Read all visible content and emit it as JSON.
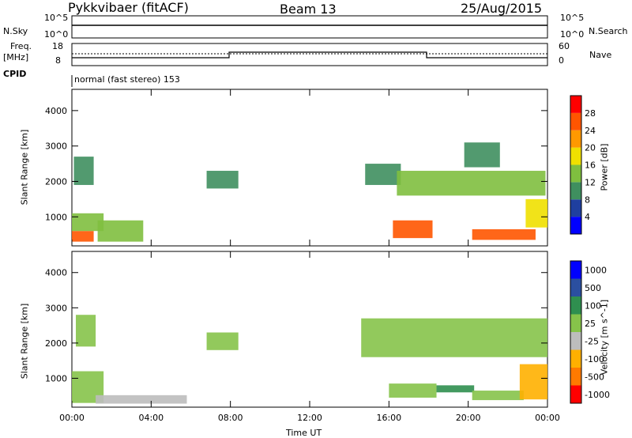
{
  "header": {
    "station": "Pykkvibaer (fitACF)",
    "beam": "Beam 13",
    "date": "25/Aug/2015"
  },
  "param_panels": {
    "nsky": {
      "label": "N.Sky",
      "ticks": [
        "10^5",
        "10^0"
      ]
    },
    "nsearch": {
      "label": "N.Search",
      "ticks": [
        "10^5",
        "10^0"
      ]
    },
    "freq": {
      "label_line1": "Freq.",
      "label_line2": "[MHz]",
      "ticks": [
        "18",
        "8"
      ]
    },
    "nave": {
      "label": "Nave",
      "ticks": [
        "60",
        "0"
      ]
    },
    "cpid": {
      "label": "CPID",
      "text": "normal (fast stereo) 153"
    }
  },
  "colors": {
    "power_scale": [
      "#0000ff",
      "#1f3f9f",
      "#3f8f5f",
      "#7fbf3f",
      "#f0e000",
      "#ff9900",
      "#ff5500",
      "#ff0000"
    ],
    "velocity_scale": [
      "#ff0000",
      "#ff7a00",
      "#ffb000",
      "#bdbdbd",
      "#86c34a",
      "#2f8f4f",
      "#2b4fa0",
      "#0000ff"
    ],
    "ground_scatter": "#bdbdbd"
  },
  "chart_data": [
    {
      "type": "heatmap",
      "title": "",
      "xlabel": "Time UT",
      "ylabel": "Slant Range [km]",
      "colorbar_label": "Power [dB]",
      "colorbar_ticks": [
        "28",
        "24",
        "20",
        "16",
        "12",
        "8",
        "4"
      ],
      "x_ticks": [
        "00:00",
        "04:00",
        "08:00",
        "12:00",
        "16:00",
        "20:00",
        "00:00"
      ],
      "y_ticks": [
        "4000",
        "3000",
        "2000",
        "1000"
      ],
      "xlim_hours": [
        0,
        24
      ],
      "ylim_km": [
        180,
        4600
      ],
      "clim_db": [
        0,
        30
      ],
      "regions": [
        {
          "t": [
            0.0,
            1.1
          ],
          "r": [
            300,
            600
          ],
          "value": 26
        },
        {
          "t": [
            0.0,
            1.6
          ],
          "r": [
            600,
            1100
          ],
          "value": 12
        },
        {
          "t": [
            0.1,
            1.1
          ],
          "r": [
            1900,
            2700
          ],
          "value": 8
        },
        {
          "t": [
            1.3,
            3.6
          ],
          "r": [
            300,
            900
          ],
          "value": 14
        },
        {
          "t": [
            6.8,
            8.4
          ],
          "r": [
            1800,
            2300
          ],
          "value": 8
        },
        {
          "t": [
            14.8,
            16.6
          ],
          "r": [
            1900,
            2500
          ],
          "value": 8
        },
        {
          "t": [
            16.2,
            18.2
          ],
          "r": [
            400,
            900
          ],
          "value": 24
        },
        {
          "t": [
            16.4,
            23.9
          ],
          "r": [
            1600,
            2300
          ],
          "value": 14
        },
        {
          "t": [
            19.8,
            21.6
          ],
          "r": [
            2400,
            3100
          ],
          "value": 8
        },
        {
          "t": [
            20.2,
            23.4
          ],
          "r": [
            350,
            650
          ],
          "value": 26
        },
        {
          "t": [
            22.9,
            24.0
          ],
          "r": [
            700,
            1500
          ],
          "value": 16
        }
      ]
    },
    {
      "type": "heatmap",
      "title": "",
      "xlabel": "Time UT",
      "ylabel": "Slant Range [km]",
      "colorbar_label": "Velocity [m s^-1]",
      "colorbar_ticks": [
        "1000",
        "500",
        "100",
        "25",
        "-25",
        "-100",
        "-500",
        "-1000"
      ],
      "x_ticks": [
        "00:00",
        "04:00",
        "08:00",
        "12:00",
        "16:00",
        "20:00",
        "00:00"
      ],
      "y_ticks": [
        "4000",
        "3000",
        "2000",
        "1000"
      ],
      "xlim_hours": [
        0,
        24
      ],
      "ylim_km": [
        180,
        4600
      ],
      "clim_ms": [
        -1000,
        1000
      ],
      "regions": [
        {
          "t": [
            0.0,
            1.6
          ],
          "r": [
            300,
            1200
          ],
          "value": 0
        },
        {
          "t": [
            0.2,
            1.2
          ],
          "r": [
            1900,
            2800
          ],
          "value": 0
        },
        {
          "t": [
            1.2,
            5.8
          ],
          "r": [
            280,
            520
          ],
          "value": -200
        },
        {
          "t": [
            6.8,
            8.4
          ],
          "r": [
            1800,
            2300
          ],
          "value": 0
        },
        {
          "t": [
            14.6,
            24.0
          ],
          "r": [
            1600,
            2700
          ],
          "value": 0
        },
        {
          "t": [
            16.0,
            18.4
          ],
          "r": [
            450,
            850
          ],
          "value": 150
        },
        {
          "t": [
            18.4,
            20.3
          ],
          "r": [
            600,
            800
          ],
          "value": 300
        },
        {
          "t": [
            20.2,
            22.8
          ],
          "r": [
            380,
            650
          ],
          "value": 150
        },
        {
          "t": [
            22.6,
            24.0
          ],
          "r": [
            400,
            1400
          ],
          "value": -300
        }
      ]
    }
  ]
}
